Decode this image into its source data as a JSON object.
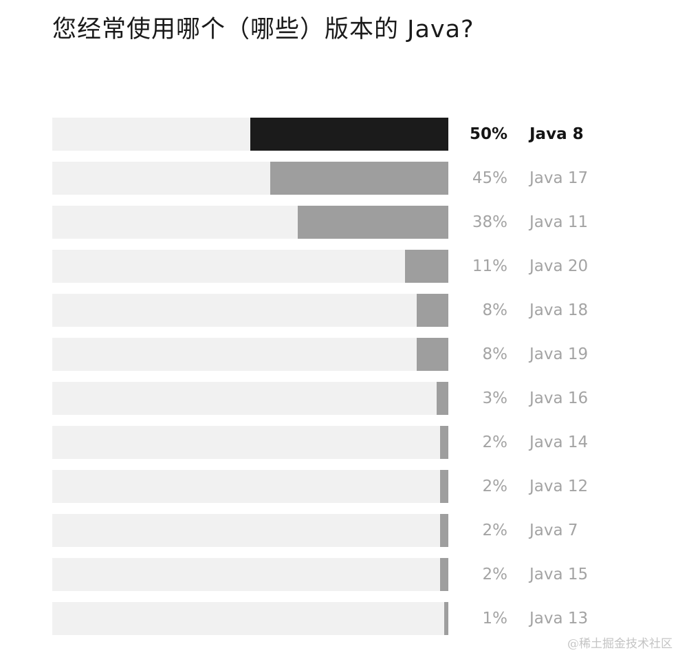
{
  "title": "您经常使用哪个（哪些）版本的 Java?",
  "watermark": "@稀土掘金技术社区",
  "colors": {
    "highlight_bar": "#1b1b1b",
    "bar": "#9e9e9e",
    "track": "#f1f1f1",
    "muted_text": "#a3a3a3"
  },
  "chart_data": {
    "type": "bar",
    "orientation": "horizontal",
    "title": "您经常使用哪个（哪些）版本的 Java?",
    "xlim": [
      0,
      100
    ],
    "grid": false,
    "highlighted_category": "Java 8",
    "categories": [
      "Java 8",
      "Java 17",
      "Java 11",
      "Java 20",
      "Java 18",
      "Java 19",
      "Java 16",
      "Java 14",
      "Java 12",
      "Java 7",
      "Java 15",
      "Java 13"
    ],
    "values": [
      50,
      45,
      38,
      11,
      8,
      8,
      3,
      2,
      2,
      2,
      2,
      1
    ],
    "value_labels": [
      "50%",
      "45%",
      "38%",
      "11%",
      "8%",
      "8%",
      "3%",
      "2%",
      "2%",
      "2%",
      "2%",
      "1%"
    ]
  }
}
